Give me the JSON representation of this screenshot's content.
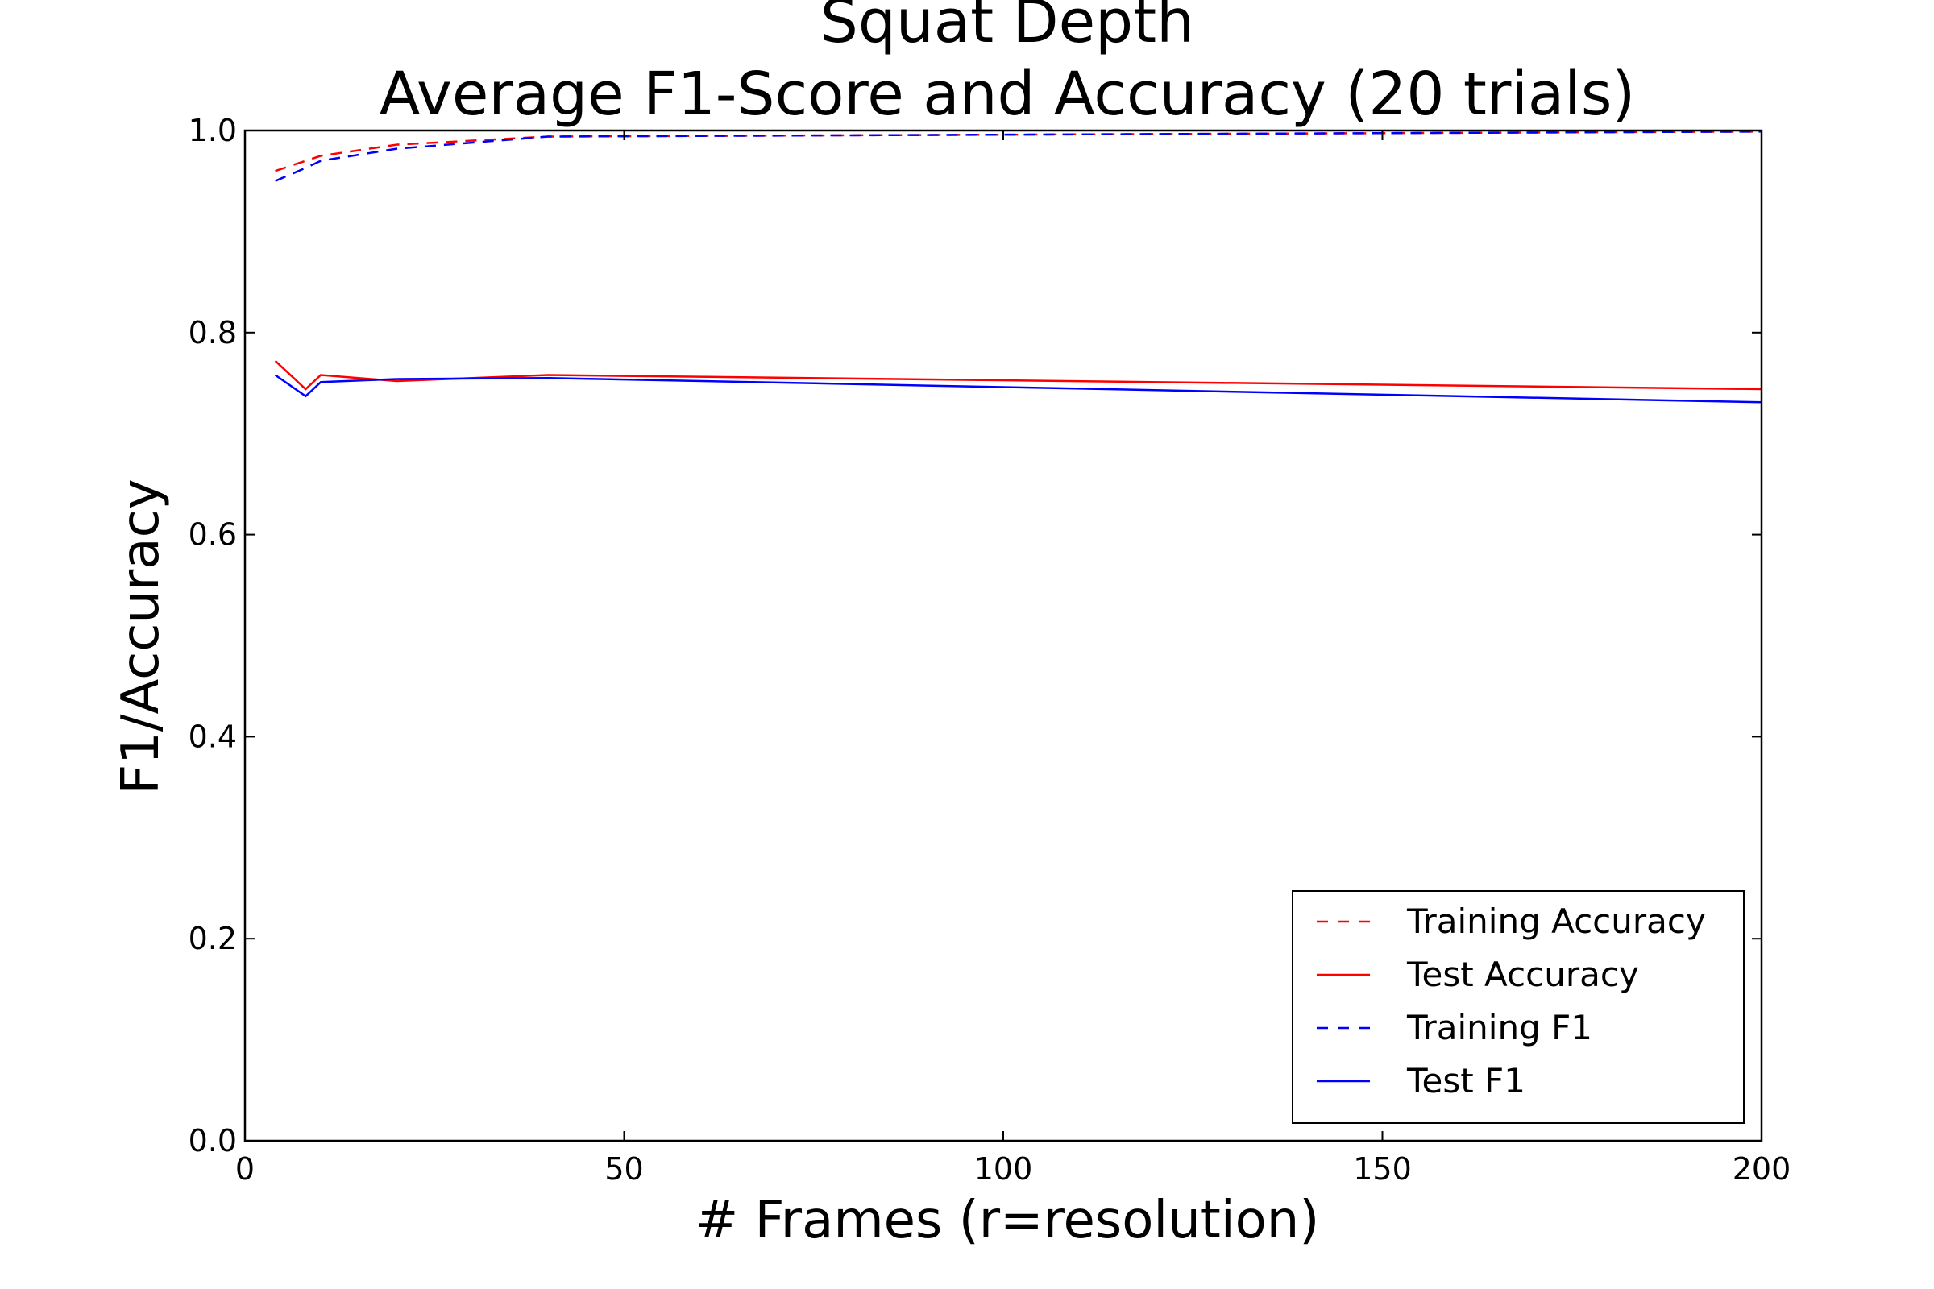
{
  "chart_data": {
    "type": "line",
    "title": "Squat Depth",
    "subtitle": "Average F1-Score and Accuracy (20 trials)",
    "xlabel": "# Frames (r=resolution)",
    "ylabel": "F1/Accuracy",
    "xlim": [
      0,
      200
    ],
    "ylim": [
      0.0,
      1.0
    ],
    "xticks": [
      0,
      50,
      100,
      150,
      200
    ],
    "xtick_labels": [
      "0",
      "50",
      "100",
      "150",
      "200"
    ],
    "yticks": [
      0.0,
      0.2,
      0.4,
      0.6,
      0.8,
      1.0
    ],
    "ytick_labels": [
      "0.0",
      "0.2",
      "0.4",
      "0.6",
      "0.8",
      "1.0"
    ],
    "grid": false,
    "legend_position": "lower-right",
    "series": [
      {
        "name": "Training Accuracy",
        "color": "#ff0000",
        "style": "dashed",
        "x": [
          4,
          8,
          10,
          20,
          40,
          200
        ],
        "y": [
          0.96,
          0.97,
          0.975,
          0.986,
          0.994,
          0.999
        ]
      },
      {
        "name": "Test Accuracy",
        "color": "#ff0000",
        "style": "solid",
        "x": [
          4,
          8,
          10,
          20,
          40,
          200
        ],
        "y": [
          0.772,
          0.744,
          0.758,
          0.752,
          0.758,
          0.744
        ]
      },
      {
        "name": "Training F1",
        "color": "#0000ff",
        "style": "dashed",
        "x": [
          4,
          8,
          10,
          20,
          40,
          200
        ],
        "y": [
          0.95,
          0.963,
          0.97,
          0.982,
          0.994,
          0.999
        ]
      },
      {
        "name": "Test F1",
        "color": "#0000ff",
        "style": "solid",
        "x": [
          4,
          8,
          10,
          20,
          40,
          200
        ],
        "y": [
          0.758,
          0.737,
          0.751,
          0.754,
          0.755,
          0.731
        ]
      }
    ]
  }
}
